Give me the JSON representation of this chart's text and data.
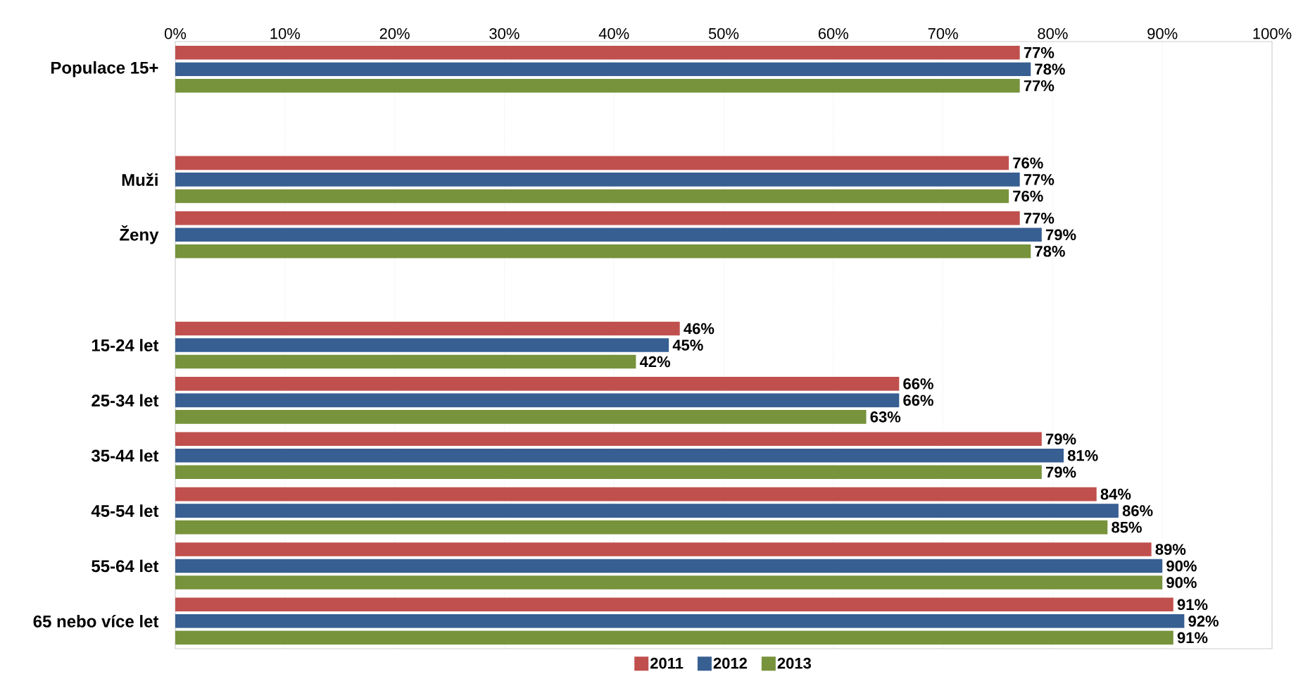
{
  "chart_data": {
    "type": "bar",
    "orientation": "horizontal",
    "grid": "x",
    "legend": "bottom",
    "categories": [
      "Populace 15+",
      null,
      "Muži",
      "Ženy",
      null,
      "15-24 let",
      "25-34 let",
      "35-44 let",
      "45-54 let",
      "55-64 let",
      "65 nebo více let"
    ],
    "series": [
      {
        "name": "2011",
        "color": "#c0504d",
        "values": [
          77,
          null,
          76,
          77,
          null,
          46,
          66,
          79,
          84,
          89,
          91
        ],
        "value_labels": [
          "77%",
          null,
          "76%",
          "77%",
          null,
          "46%",
          "66%",
          "79%",
          "84%",
          "89%",
          "91%"
        ]
      },
      {
        "name": "2012",
        "color": "#375f92",
        "values": [
          78,
          null,
          77,
          79,
          null,
          45,
          66,
          81,
          86,
          90,
          92
        ],
        "value_labels": [
          "78%",
          null,
          "77%",
          "79%",
          null,
          "45%",
          "66%",
          "81%",
          "86%",
          "90%",
          "92%"
        ]
      },
      {
        "name": "2013",
        "color": "#77933c",
        "values": [
          77,
          null,
          76,
          78,
          null,
          42,
          63,
          79,
          85,
          90,
          91
        ],
        "value_labels": [
          "77%",
          null,
          "76%",
          "78%",
          null,
          "42%",
          "63%",
          "79%",
          "85%",
          "90%",
          "91%"
        ]
      }
    ],
    "xlim": [
      0,
      100
    ],
    "xticks": [
      {
        "value": 0,
        "label": "0%"
      },
      {
        "value": 10,
        "label": "10%"
      },
      {
        "value": 20,
        "label": "20%"
      },
      {
        "value": 30,
        "label": "30%"
      },
      {
        "value": 40,
        "label": "40%"
      },
      {
        "value": 50,
        "label": "50%"
      },
      {
        "value": 60,
        "label": "60%"
      },
      {
        "value": 70,
        "label": "70%"
      },
      {
        "value": 80,
        "label": "80%"
      },
      {
        "value": 90,
        "label": "90%"
      },
      {
        "value": 100,
        "label": "100%"
      }
    ]
  }
}
